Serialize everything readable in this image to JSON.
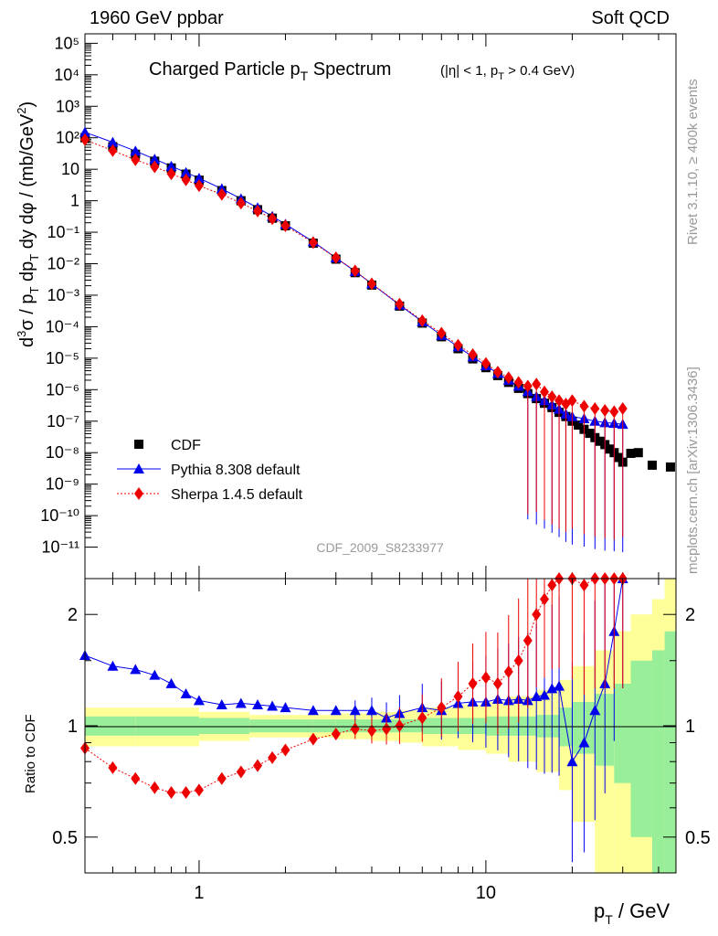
{
  "header": {
    "left_title": "1960 GeV ppbar",
    "right_title": "Soft QCD"
  },
  "side": {
    "rivet": "Rivet 3.1.10, ≥ 400k events",
    "mcplots": "mcplots.cern.ch [arXiv:1306.3436]"
  },
  "colors": {
    "cdf": "#000000",
    "pythia": "#0000ee",
    "sherpa": "#ee0000",
    "band_inner": "#99ee99",
    "band_outer": "#ffff99",
    "watermark": "#999999"
  },
  "chart_data": [
    {
      "type": "scatter",
      "panel": "main",
      "title": "Charged Particle p_T Spectrum",
      "title_main": "Charged Particle p",
      "title_sub": "T",
      "title_after": " Spectrum",
      "title_cut": "(|η| < 1, p_T > 0.4 GeV)",
      "title_cut_a": "(|η| < 1, p",
      "title_cut_b": "T",
      "title_cut_c": " > 0.4 GeV)",
      "ylabel": "d³σ / p_T dp_T dy dφ / (mb/GeV²)",
      "ylabel_parts": [
        "d",
        "3",
        "σ / p",
        "T",
        " dp",
        "T",
        " dy dφ / (mb/GeV",
        "2",
        ")"
      ],
      "xscale": "log",
      "yscale": "log",
      "xlim": [
        0.4,
        46
      ],
      "ylim": [
        1e-12,
        200000.0
      ],
      "analysis_id": "CDF_2009_S8233977",
      "legend_position": "bottom-left",
      "y_tick_labels": [
        "10⁻¹¹",
        "10⁻¹⁰",
        "10⁻⁹",
        "10⁻⁸",
        "10⁻⁷",
        "10⁻⁶",
        "10⁻⁵",
        "10⁻⁴",
        "10⁻³",
        "10⁻²",
        "10⁻¹",
        "1",
        "10",
        "10²",
        "10³",
        "10⁴",
        "10⁵"
      ],
      "y_tick_values": [
        1e-11,
        1e-10,
        1e-09,
        1e-08,
        1e-07,
        1e-06,
        1e-05,
        0.0001,
        0.001,
        0.01,
        0.1,
        1,
        10,
        100,
        1000,
        10000,
        100000
      ],
      "series": [
        {
          "name": "CDF",
          "marker": "square",
          "x": [
            0.4,
            0.5,
            0.6,
            0.7,
            0.8,
            0.9,
            1.0,
            1.2,
            1.4,
            1.6,
            1.8,
            2.0,
            2.5,
            3.0,
            3.5,
            4.0,
            5.0,
            6.0,
            7.0,
            8.0,
            9.0,
            10.0,
            11.0,
            12.0,
            13.0,
            14.0,
            15.0,
            16.0,
            17.0,
            18.0,
            19.0,
            20.0,
            21.0,
            22.0,
            23.0,
            24.0,
            25.0,
            26.0,
            27.0,
            28.0,
            29.0,
            30.0,
            32.0,
            34.0,
            38.0,
            44.0
          ],
          "y": [
            100,
            52,
            30,
            18,
            11,
            7,
            4.5,
            2.1,
            1.0,
            0.52,
            0.28,
            0.16,
            0.045,
            0.014,
            0.0052,
            0.0021,
            0.00045,
            0.00013,
            4.8e-05,
            2e-05,
            9.5e-06,
            5e-06,
            2.8e-06,
            1.7e-06,
            1.1e-06,
            7.5e-07,
            5.2e-07,
            3.7e-07,
            2.7e-07,
            1.9e-07,
            1.4e-07,
            1e-07,
            7.5e-08,
            5.5e-08,
            4.1e-08,
            3e-08,
            2.3e-08,
            1.8e-08,
            1.3e-08,
            1e-08,
            7e-09,
            5e-09,
            9.5e-09,
            1e-08,
            4e-09,
            3.5e-09
          ]
        },
        {
          "name": "Pythia 8.308 default",
          "marker": "triangle",
          "x": [
            0.4,
            0.5,
            0.6,
            0.7,
            0.8,
            0.9,
            1.0,
            1.2,
            1.4,
            1.6,
            1.8,
            2.0,
            2.5,
            3.0,
            3.5,
            4.0,
            5.0,
            6.0,
            7.0,
            8.0,
            9.0,
            10.0,
            11.0,
            12.0,
            13.0,
            14.0,
            15.0,
            16.0,
            17.0,
            18.0,
            19.0,
            20.0,
            22.0,
            24.0,
            26.0,
            28.0,
            30.0
          ],
          "y": [
            150,
            72,
            38,
            21,
            12.5,
            7.9,
            5.2,
            2.4,
            1.15,
            0.6,
            0.32,
            0.18,
            0.05,
            0.0155,
            0.0057,
            0.0023,
            0.00049,
            0.000145,
            5.3e-05,
            2.3e-05,
            1.1e-05,
            5.8e-06,
            3.3e-06,
            2e-06,
            1.3e-06,
            8.8e-07,
            6.1e-07,
            4.5e-07,
            3.3e-07,
            2.4e-07,
            1.7e-07,
            1.4e-07,
            1.2e-07,
            1e-07,
            9e-08,
            8.5e-08,
            8e-08
          ]
        },
        {
          "name": "Sherpa 1.4.5 default",
          "marker": "diamond",
          "x": [
            0.4,
            0.5,
            0.6,
            0.7,
            0.8,
            0.9,
            1.0,
            1.2,
            1.4,
            1.6,
            1.8,
            2.0,
            2.5,
            3.0,
            3.5,
            4.0,
            5.0,
            6.0,
            7.0,
            8.0,
            9.0,
            10.0,
            11.0,
            12.0,
            13.0,
            14.0,
            15.0,
            16.0,
            17.0,
            18.0,
            19.0,
            20.0,
            22.0,
            24.0,
            26.0,
            28.0,
            30.0
          ],
          "y": [
            87,
            39,
            20,
            12,
            7.2,
            4.6,
            3.0,
            1.6,
            0.84,
            0.47,
            0.27,
            0.16,
            0.047,
            0.0155,
            0.0059,
            0.0023,
            0.00052,
            0.000155,
            6.2e-05,
            2.6e-05,
            1.3e-05,
            6.8e-06,
            3.6e-06,
            2.4e-06,
            1.7e-06,
            1.3e-06,
            1.5e-06,
            8.5e-07,
            6e-07,
            4.5e-07,
            3.5e-07,
            4.5e-07,
            3e-07,
            2.5e-07,
            2.2e-07,
            2e-07,
            2.5e-07
          ]
        }
      ]
    },
    {
      "type": "scatter",
      "panel": "ratio",
      "xlabel": "p_T / GeV",
      "xlabel_parts": [
        "p",
        "T",
        " / GeV"
      ],
      "ylabel": "Ratio to CDF",
      "xscale": "log",
      "yscale": "log",
      "xlim": [
        0.4,
        46
      ],
      "ylim": [
        0.4,
        2.5
      ],
      "x_tick_labels": [
        "1",
        "10"
      ],
      "x_tick_values": [
        1,
        10
      ],
      "y_tick_labels": [
        "0.5",
        "1",
        "2"
      ],
      "y_tick_values": [
        0.5,
        1,
        2
      ],
      "bands": {
        "x": [
          0.4,
          0.6,
          1.0,
          1.5,
          2.5,
          3.0,
          4.0,
          5.0,
          6.0,
          8.0,
          10.0,
          12.0,
          15.0,
          18.0,
          20.0,
          24.0,
          28.0,
          32.0,
          38.0,
          42.0,
          46.0
        ],
        "inner": [
          0.06,
          0.06,
          0.05,
          0.04,
          0.04,
          0.04,
          0.04,
          0.04,
          0.05,
          0.05,
          0.06,
          0.06,
          0.07,
          0.12,
          0.16,
          0.22,
          0.3,
          0.5,
          0.6,
          0.8,
          0.8
        ],
        "outer": [
          0.12,
          0.12,
          0.09,
          0.07,
          0.07,
          0.08,
          0.09,
          0.1,
          0.12,
          0.14,
          0.16,
          0.2,
          0.25,
          0.33,
          0.45,
          0.6,
          0.8,
          1.0,
          1.2,
          1.5,
          1.5
        ]
      },
      "series": [
        {
          "name": "Pythia 8.308 default",
          "marker": "triangle",
          "x": [
            0.4,
            0.5,
            0.6,
            0.7,
            0.8,
            0.9,
            1.0,
            1.2,
            1.4,
            1.6,
            1.8,
            2.0,
            2.5,
            3.0,
            3.5,
            4.0,
            4.5,
            5.0,
            6.0,
            7.0,
            8.0,
            9.0,
            10.0,
            11.0,
            12.0,
            13.0,
            14.0,
            15.0,
            16.0,
            17.0,
            18.0,
            20.0,
            22.0,
            24.0,
            26.0,
            28.0,
            30.0
          ],
          "y": [
            1.55,
            1.45,
            1.42,
            1.37,
            1.3,
            1.22,
            1.17,
            1.14,
            1.15,
            1.14,
            1.13,
            1.12,
            1.1,
            1.1,
            1.1,
            1.1,
            1.05,
            1.08,
            1.12,
            1.1,
            1.15,
            1.16,
            1.16,
            1.18,
            1.17,
            1.18,
            1.17,
            1.2,
            1.21,
            1.26,
            1.28,
            0.8,
            0.9,
            1.1,
            1.3,
            1.8,
            2.5
          ]
        },
        {
          "name": "Sherpa 1.4.5 default",
          "marker": "diamond",
          "x": [
            0.4,
            0.5,
            0.6,
            0.7,
            0.8,
            0.9,
            1.0,
            1.2,
            1.4,
            1.6,
            1.8,
            2.0,
            2.5,
            3.0,
            3.5,
            4.0,
            4.5,
            5.0,
            6.0,
            7.0,
            8.0,
            9.0,
            10.0,
            11.0,
            12.0,
            13.0,
            14.0,
            15.0,
            16.0,
            17.0,
            18.0,
            20.0,
            22.0,
            24.0,
            26.0,
            28.0,
            30.0
          ],
          "y": [
            0.87,
            0.77,
            0.72,
            0.68,
            0.66,
            0.66,
            0.67,
            0.72,
            0.75,
            0.78,
            0.82,
            0.86,
            0.92,
            0.95,
            0.98,
            0.97,
            0.98,
            1.0,
            1.05,
            1.12,
            1.2,
            1.3,
            1.35,
            1.3,
            1.4,
            1.5,
            1.7,
            2.0,
            2.2,
            2.4,
            2.5,
            2.5,
            2.4,
            2.5,
            2.5,
            2.5,
            2.5
          ]
        }
      ]
    }
  ]
}
